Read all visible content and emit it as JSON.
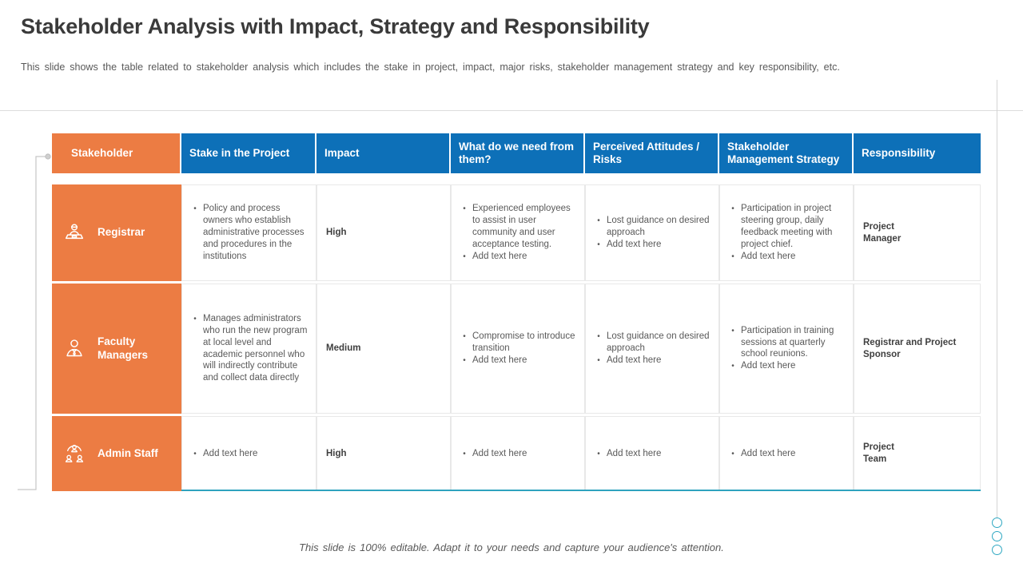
{
  "slide": {
    "title": "Stakeholder Analysis with Impact, Strategy and Responsibility",
    "subtitle": "This slide shows the table related to stakeholder analysis which includes the stake in project, impact, major risks, stakeholder management strategy and key responsibility, etc.",
    "footer": "This slide is 100% editable. Adapt it to your needs and capture your audience's attention."
  },
  "colors": {
    "accent_orange": "#ec7c43",
    "header_blue": "#0d70b8",
    "teal_accent": "#2ea3be",
    "body_text_gray": "#595959"
  },
  "table": {
    "headers": [
      "Stakeholder",
      "Stake in the Project",
      "Impact",
      "What do we need from them?",
      "Perceived  Attitudes / Risks",
      "Stakeholder Management Strategy",
      "Responsibility"
    ],
    "rows": [
      {
        "name": "Registrar",
        "icon": "registrar-desk-icon",
        "stake": [
          "Policy and process owners who establish administrative processes and procedures in the institutions"
        ],
        "impact": "High",
        "needs": [
          "Experienced employees to assist in user community and user acceptance testing.",
          "Add text here"
        ],
        "risks": [
          "Lost guidance on desired approach",
          "Add text here"
        ],
        "strategy": [
          "Participation in project steering group, daily feedback meeting with project chief.",
          "Add text here"
        ],
        "responsibility": "Project\nManager"
      },
      {
        "name": "Faculty Managers",
        "icon": "manager-person-icon",
        "stake": [
          "Manages administrators who run the new program at local level and academic personnel who will indirectly contribute and collect data directly"
        ],
        "impact": "Medium",
        "needs": [
          "Compromise to introduce transition",
          "Add text here"
        ],
        "risks": [
          "Lost guidance on desired approach",
          "Add text here"
        ],
        "strategy": [
          "Participation in training sessions at quarterly school reunions.",
          "Add text here"
        ],
        "responsibility": "Registrar and Project Sponsor"
      },
      {
        "name": "Admin  Staff",
        "icon": "admin-hierarchy-icon",
        "stake": [
          "Add text here"
        ],
        "impact": "High",
        "needs": [
          "Add text here"
        ],
        "risks": [
          "Add text here"
        ],
        "strategy": [
          "Add text here"
        ],
        "responsibility": "Project\nTeam"
      }
    ]
  }
}
